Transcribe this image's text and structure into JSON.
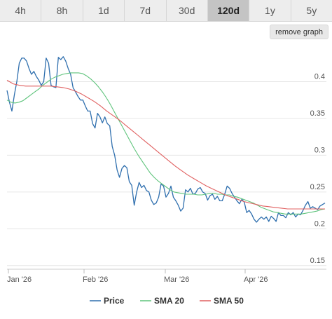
{
  "tabs": [
    {
      "label": "4h",
      "active": false
    },
    {
      "label": "8h",
      "active": false
    },
    {
      "label": "1d",
      "active": false
    },
    {
      "label": "7d",
      "active": false
    },
    {
      "label": "30d",
      "active": false
    },
    {
      "label": "120d",
      "active": true
    },
    {
      "label": "1y",
      "active": false
    },
    {
      "label": "5y",
      "active": false
    }
  ],
  "remove_graph_label": "remove graph",
  "chart_data": {
    "type": "line",
    "x_ticks": [
      "Jan '26",
      "Feb '26",
      "Mar '26",
      "Apr '26"
    ],
    "y_ticks": [
      0.15,
      0.2,
      0.25,
      0.3,
      0.35,
      0.4
    ],
    "ylim": [
      0.145,
      0.45
    ],
    "grid": true,
    "legend_position": "bottom",
    "series": [
      {
        "name": "Price",
        "color": "#2f6fae",
        "values": [
          0.388,
          0.372,
          0.36,
          0.382,
          0.4,
          0.425,
          0.432,
          0.432,
          0.428,
          0.418,
          0.41,
          0.414,
          0.407,
          0.402,
          0.395,
          0.4,
          0.432,
          0.425,
          0.395,
          0.393,
          0.392,
          0.433,
          0.43,
          0.434,
          0.428,
          0.418,
          0.41,
          0.392,
          0.386,
          0.38,
          0.375,
          0.375,
          0.367,
          0.36,
          0.36,
          0.343,
          0.337,
          0.357,
          0.352,
          0.344,
          0.352,
          0.343,
          0.34,
          0.312,
          0.3,
          0.28,
          0.27,
          0.282,
          0.286,
          0.283,
          0.264,
          0.259,
          0.232,
          0.25,
          0.263,
          0.256,
          0.259,
          0.252,
          0.25,
          0.239,
          0.233,
          0.235,
          0.243,
          0.261,
          0.258,
          0.243,
          0.248,
          0.258,
          0.243,
          0.238,
          0.232,
          0.224,
          0.228,
          0.253,
          0.25,
          0.255,
          0.247,
          0.248,
          0.254,
          0.256,
          0.25,
          0.248,
          0.239,
          0.245,
          0.247,
          0.24,
          0.244,
          0.238,
          0.238,
          0.247,
          0.258,
          0.255,
          0.248,
          0.243,
          0.238,
          0.234,
          0.24,
          0.236,
          0.222,
          0.225,
          0.22,
          0.213,
          0.209,
          0.213,
          0.216,
          0.213,
          0.216,
          0.21,
          0.217,
          0.214,
          0.21,
          0.222,
          0.218,
          0.218,
          0.215,
          0.222,
          0.219,
          0.222,
          0.216,
          0.22,
          0.219,
          0.225,
          0.232,
          0.237,
          0.228,
          0.23,
          0.228,
          0.226,
          0.231,
          0.233,
          0.235
        ]
      },
      {
        "name": "SMA 20",
        "color": "#5fc47c",
        "values": [
          0.375,
          0.372,
          0.371,
          0.372,
          0.374,
          0.378,
          0.382,
          0.386,
          0.39,
          0.395,
          0.399,
          0.403,
          0.406,
          0.408,
          0.41,
          0.411,
          0.412,
          0.412,
          0.412,
          0.411,
          0.408,
          0.404,
          0.399,
          0.393,
          0.386,
          0.378,
          0.369,
          0.359,
          0.349,
          0.339,
          0.329,
          0.319,
          0.309,
          0.3,
          0.292,
          0.284,
          0.276,
          0.27,
          0.265,
          0.261,
          0.257,
          0.253,
          0.25,
          0.249,
          0.248,
          0.247,
          0.247,
          0.247,
          0.246,
          0.246,
          0.247,
          0.248,
          0.248,
          0.247,
          0.247,
          0.246,
          0.246,
          0.244,
          0.243,
          0.241,
          0.239,
          0.237,
          0.235,
          0.232,
          0.229,
          0.227,
          0.225,
          0.223,
          0.222,
          0.221,
          0.22,
          0.22,
          0.22,
          0.22,
          0.22,
          0.221,
          0.222,
          0.223,
          0.224,
          0.226,
          0.227
        ]
      },
      {
        "name": "SMA 50",
        "color": "#e06060",
        "values": [
          0.402,
          0.397,
          0.395,
          0.394,
          0.394,
          0.394,
          0.394,
          0.394,
          0.393,
          0.392,
          0.39,
          0.387,
          0.383,
          0.378,
          0.373,
          0.367,
          0.36,
          0.354,
          0.348,
          0.341,
          0.334,
          0.327,
          0.32,
          0.313,
          0.306,
          0.299,
          0.292,
          0.285,
          0.279,
          0.273,
          0.268,
          0.263,
          0.258,
          0.254,
          0.25,
          0.246,
          0.243,
          0.24,
          0.237,
          0.235,
          0.233,
          0.231,
          0.23,
          0.229,
          0.228,
          0.227,
          0.227,
          0.227,
          0.227,
          0.227,
          0.227,
          0.227
        ]
      }
    ]
  }
}
